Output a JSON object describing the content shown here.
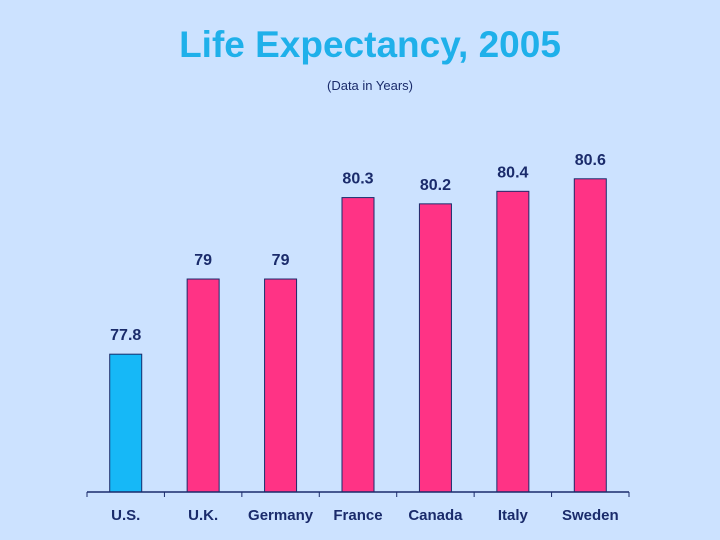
{
  "colors": {
    "background": "#cce2ff",
    "title": "#1fb0ea",
    "highlight_bar": "#16b8f7",
    "bar": "#ff3385",
    "text": "#1a2b6b",
    "axis": "#1a2b6b"
  },
  "chart_data": {
    "type": "bar",
    "title": "Life Expectancy, 2005",
    "subtitle": "(Data in Years)",
    "xlabel": "",
    "ylabel": "",
    "categories": [
      "U.S.",
      "U.K.",
      "Germany",
      "France",
      "Canada",
      "Italy",
      "Sweden"
    ],
    "values": [
      77.8,
      79,
      79,
      80.3,
      80.2,
      80.4,
      80.6
    ],
    "value_labels": [
      "77.8",
      "79",
      "79",
      "80.3",
      "80.2",
      "80.4",
      "80.6"
    ],
    "highlight_index": 0,
    "ylim": [
      75.6,
      80.9
    ],
    "grid": false
  }
}
